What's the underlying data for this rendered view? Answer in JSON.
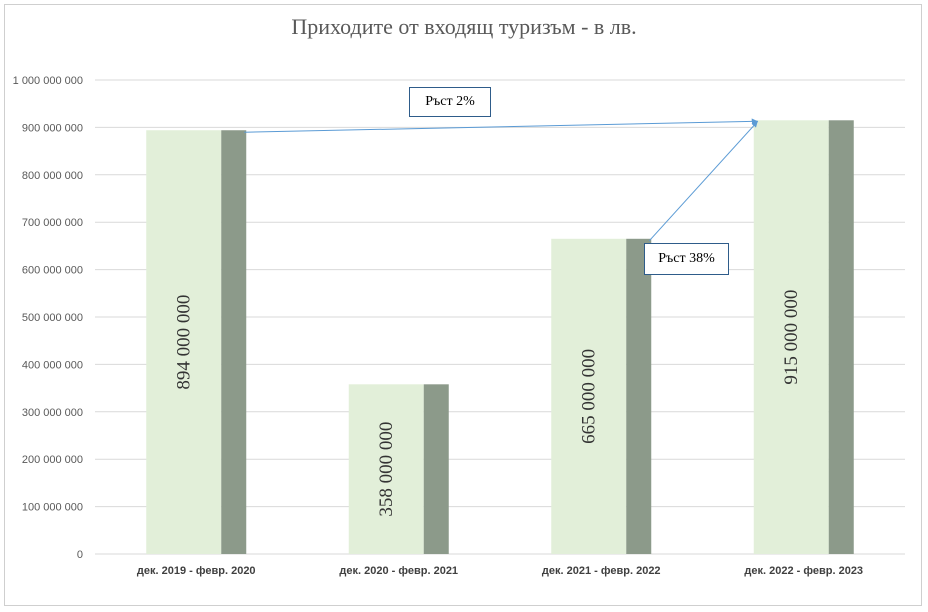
{
  "chart_data": {
    "type": "bar",
    "title": "Приходите от входящ туризъм - в лв.",
    "categories": [
      "дек. 2019 - февр. 2020",
      "дек. 2020 - февр. 2021",
      "дек. 2021 - февр. 2022",
      "дек. 2022 - февр. 2023"
    ],
    "values": [
      894000000,
      358000000,
      665000000,
      915000000
    ],
    "data_labels": [
      "894 000 000",
      "358 000 000",
      "665 000 000",
      "915 000 000"
    ],
    "ylim": [
      0,
      1000000000
    ],
    "yticks": [
      0,
      100000000,
      200000000,
      300000000,
      400000000,
      500000000,
      600000000,
      700000000,
      800000000,
      900000000,
      1000000000
    ],
    "ytick_labels": [
      "0",
      "100 000 000",
      "200 000 000",
      "300 000 000",
      "400 000 000",
      "500 000 000",
      "600 000 000",
      "700 000 000",
      "800 000 000",
      "900 000 000",
      "1 000 000 000"
    ],
    "grid": true,
    "colors": {
      "bar_light": "#e2efd9",
      "bar_dark": "#8c9a8a",
      "grid": "#d9d9d9",
      "arrow": "#5b9bd5"
    },
    "annotations": [
      {
        "text": "Ръст 2%",
        "from_category": 0,
        "to_category": 3
      },
      {
        "text": "Ръст 38%",
        "from_category": 2,
        "to_category": 3
      }
    ]
  }
}
